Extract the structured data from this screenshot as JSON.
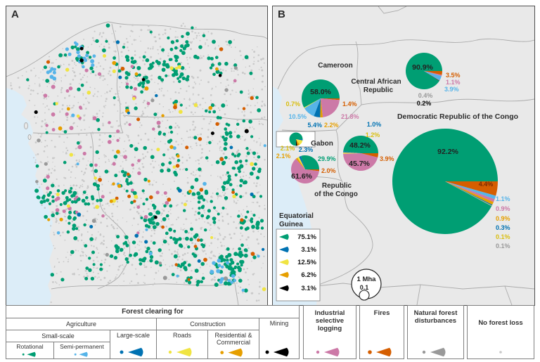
{
  "figure": {
    "panel_a_label": "A",
    "panel_b_label": "B"
  },
  "colors": {
    "rotational": "#009E73",
    "semi_permanent": "#56B4E9",
    "large_scale": "#0072B2",
    "roads": "#F0E442",
    "residential_commercial": "#E69F00",
    "mining": "#000000",
    "logging": "#CC79A7",
    "fires": "#D55E00",
    "natural": "#999999",
    "no_loss": "#C9C9C9",
    "roads_label": "#D9BE10",
    "inside_label": "#222222",
    "drc_fires_label": "#7A2A00",
    "ocean": "#DCEDF8",
    "land": "#E9E9E9",
    "country_border": "#ABABAB",
    "country_label": "#2B2B2B"
  },
  "chart_data": [
    {
      "type": "pie",
      "title": "Cameroon",
      "series": [
        {
          "category": "rotational",
          "name": "Rotational agriculture",
          "value": 58.0
        },
        {
          "category": "fires",
          "name": "Fires",
          "value": 1.4
        },
        {
          "category": "logging",
          "name": "Industrial selective logging",
          "value": 21.8
        },
        {
          "category": "residential_commercial",
          "name": "Residential & Commercial",
          "value": 2.2
        },
        {
          "category": "large_scale",
          "name": "Large-scale agriculture",
          "value": 5.4
        },
        {
          "category": "semi_permanent",
          "name": "Semi-permanent agriculture",
          "value": 10.5
        },
        {
          "category": "roads",
          "name": "Roads",
          "value": 0.7
        }
      ]
    },
    {
      "type": "pie",
      "title": "Central African Republic",
      "series": [
        {
          "category": "rotational",
          "name": "Rotational agriculture",
          "value": 90.9
        },
        {
          "category": "fires",
          "name": "Fires",
          "value": 3.5
        },
        {
          "category": "logging",
          "name": "Industrial selective logging",
          "value": 1.1
        },
        {
          "category": "semi_permanent",
          "name": "Semi-permanent agriculture",
          "value": 3.9
        },
        {
          "category": "natural",
          "name": "Natural forest disturbances",
          "value": 0.4
        },
        {
          "category": "mining",
          "name": "Mining",
          "value": 0.2
        }
      ]
    },
    {
      "type": "pie",
      "title": "Democratic Republic of the Congo",
      "series": [
        {
          "category": "rotational",
          "name": "Rotational agriculture",
          "value": 92.2
        },
        {
          "category": "fires",
          "name": "Fires",
          "value": 4.4
        },
        {
          "category": "semi_permanent",
          "name": "Semi-permanent agriculture",
          "value": 1.1
        },
        {
          "category": "logging",
          "name": "Industrial selective logging",
          "value": 0.9
        },
        {
          "category": "residential_commercial",
          "name": "Residential & Commercial",
          "value": 0.9
        },
        {
          "category": "large_scale",
          "name": "Large-scale agriculture",
          "value": 0.3
        },
        {
          "category": "roads",
          "name": "Roads",
          "value": 0.1
        },
        {
          "category": "natural",
          "name": "Natural forest disturbances",
          "value": 0.1
        }
      ]
    },
    {
      "type": "pie",
      "title": "Republic of the Congo",
      "series": [
        {
          "category": "rotational",
          "name": "Rotational agriculture",
          "value": 48.2
        },
        {
          "category": "fires",
          "name": "Fires",
          "value": 3.9
        },
        {
          "category": "logging",
          "name": "Industrial selective logging",
          "value": 45.7
        },
        {
          "category": "roads",
          "name": "Roads",
          "value": 1.2
        },
        {
          "category": "large_scale",
          "name": "Large-scale agriculture",
          "value": 1.0
        }
      ]
    },
    {
      "type": "pie",
      "title": "Gabon",
      "series": [
        {
          "category": "rotational",
          "name": "Rotational agriculture",
          "value": 29.9
        },
        {
          "category": "fires",
          "name": "Fires",
          "value": 2.0
        },
        {
          "category": "logging",
          "name": "Industrial selective logging",
          "value": 61.6
        },
        {
          "category": "residential_commercial",
          "name": "Residential & Commercial",
          "value": 2.1
        },
        {
          "category": "roads",
          "name": "Roads",
          "value": 2.1
        },
        {
          "category": "large_scale",
          "name": "Large-scale agriculture",
          "value": 2.3
        }
      ]
    },
    {
      "type": "pie",
      "title": "Equatorial Guinea",
      "series": [
        {
          "category": "rotational",
          "name": "Rotational agriculture",
          "value": 75.1
        },
        {
          "category": "large_scale",
          "name": "Large-scale agriculture",
          "value": 3.1
        },
        {
          "category": "roads",
          "name": "Roads",
          "value": 12.5
        },
        {
          "category": "residential_commercial",
          "name": "Residential & Commercial",
          "value": 6.2
        },
        {
          "category": "mining",
          "name": "Mining",
          "value": 3.1
        }
      ]
    }
  ],
  "panel_b": {
    "country_labels": [
      {
        "name": "Cameroon",
        "lines": [
          "Cameroon"
        ]
      },
      {
        "name": "Central African Republic",
        "lines": [
          "Central African",
          "Republic"
        ]
      },
      {
        "name": "Democratic Republic of the Congo",
        "lines": [
          "Democratic Republic of the Congo"
        ]
      },
      {
        "name": "Gabon",
        "lines": [
          "Gabon"
        ]
      },
      {
        "name": "Republic of the Congo",
        "lines": [
          "Republic",
          "of the Congo"
        ]
      },
      {
        "name": "Equatorial Guinea",
        "lines": [
          "Equatorial",
          "Guinea"
        ]
      }
    ],
    "scale": {
      "big": "1 Mha",
      "small": "0.1"
    }
  },
  "panel_a": {
    "dots": [
      {
        "category": "no_loss",
        "count": 1600
      },
      {
        "category": "rotational",
        "count": 560
      },
      {
        "category": "semi_permanent",
        "count": 48
      },
      {
        "category": "logging",
        "count": 55
      },
      {
        "category": "roads",
        "count": 26
      },
      {
        "category": "residential_commercial",
        "count": 20
      },
      {
        "category": "fires",
        "count": 30
      },
      {
        "category": "large_scale",
        "count": 13
      },
      {
        "category": "mining",
        "count": 8
      },
      {
        "category": "natural",
        "count": 12
      }
    ]
  },
  "legend": {
    "title": "Forest clearing for",
    "agriculture": "Agriculture",
    "construction": "Construction",
    "mining": "Mining",
    "small_scale": "Small-scale",
    "large_scale": "Large-scale",
    "rotational": "Rotational",
    "semi_permanent": "Semi-permanent",
    "roads": "Roads",
    "residential_commercial": "Residential & Commercial",
    "logging": "Industrial selective logging",
    "fires": "Fires",
    "natural": "Natural forest disturbances",
    "no_loss": "No forest loss"
  }
}
